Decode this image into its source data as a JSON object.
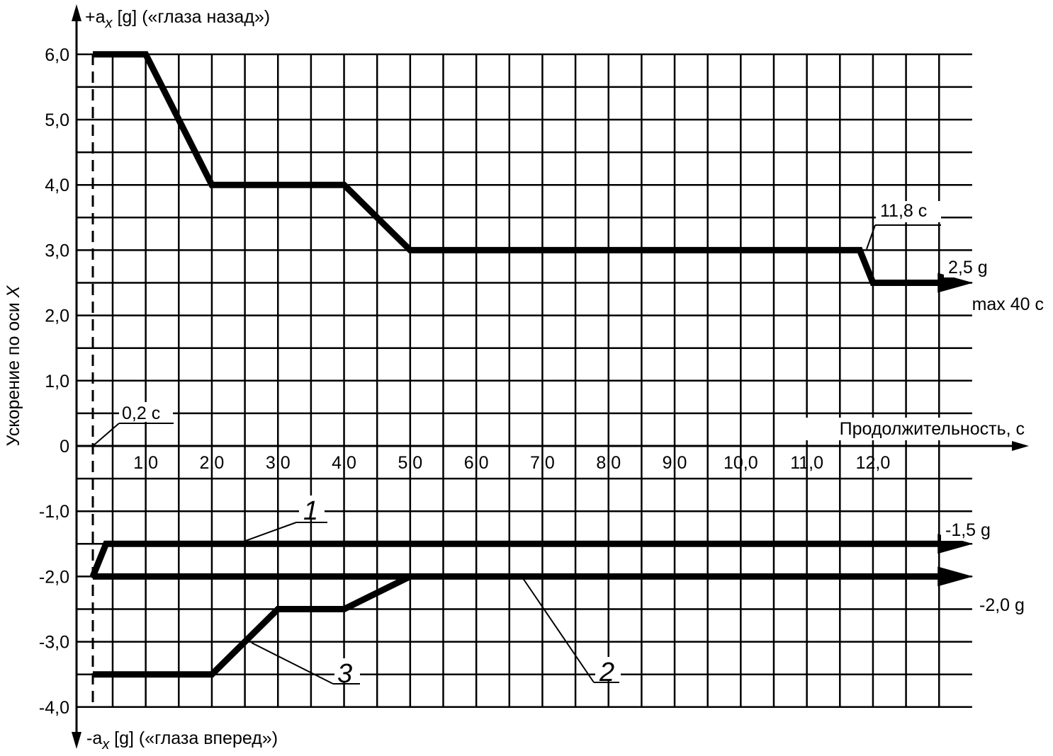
{
  "chart_data": {
    "type": "line",
    "title": "",
    "y_axis": {
      "label": "Ускорение по оси X",
      "label_plain": "Ускорение по оси ",
      "label_italic": "X",
      "positive_label": "+a",
      "positive_sub": "x",
      "positive_rest": " [g] («глаза назад»)",
      "negative_label": "-a",
      "negative_sub": "x",
      "negative_rest": " [g] («глаза вперед»)",
      "ylim": [
        -4.0,
        6.0
      ],
      "tick_labels": [
        "6,0",
        "5,0",
        "4,0",
        "3,0",
        "2,0",
        "1,0",
        "0",
        "-1,0",
        "-2,0",
        "-3,0",
        "-4,0"
      ],
      "tick_values": [
        6,
        5,
        4,
        3,
        2,
        1,
        0,
        -1,
        -2,
        -3,
        -4
      ]
    },
    "x_axis": {
      "label": "Продолжительность, с",
      "xlim": [
        0,
        13.2
      ],
      "tick_labels": [
        "1,0",
        "2,0",
        "3,0",
        "4,0",
        "5,0",
        "6,0",
        "7,0",
        "8,0",
        "9,0",
        "10,0",
        "11,0",
        "12,0"
      ],
      "tick_values": [
        1,
        2,
        3,
        4,
        5,
        6,
        7,
        8,
        9,
        10,
        11,
        12
      ]
    },
    "grid": true,
    "series": [
      {
        "id": "upper",
        "x": [
          0,
          0.8,
          1.8,
          3.8,
          4.8,
          11.6,
          11.8,
          12.8
        ],
        "y": [
          6.0,
          6.0,
          4.0,
          4.0,
          3.0,
          3.0,
          2.5,
          2.5
        ],
        "arrow_end": true
      },
      {
        "id": "1",
        "name": "1",
        "x": [
          0,
          0.2,
          12.8
        ],
        "y": [
          -2.0,
          -1.5,
          -1.5
        ],
        "arrow_end": true
      },
      {
        "id": "2",
        "name": "2",
        "x": [
          0,
          12.8
        ],
        "y": [
          -2.0,
          -2.0
        ],
        "arrow_end": true
      },
      {
        "id": "3",
        "name": "3",
        "x": [
          0,
          1.8,
          2.8,
          3.8,
          4.8
        ],
        "y": [
          -3.5,
          -3.5,
          -2.5,
          -2.5,
          -2.0
        ],
        "arrow_end": false
      }
    ],
    "annotations": {
      "t02": "0,2 с",
      "t118": "11,8 с",
      "g25": "2,5 g",
      "max40": "max 40 с",
      "g15": "-1,5 g",
      "g20": "-2,0 g"
    }
  }
}
